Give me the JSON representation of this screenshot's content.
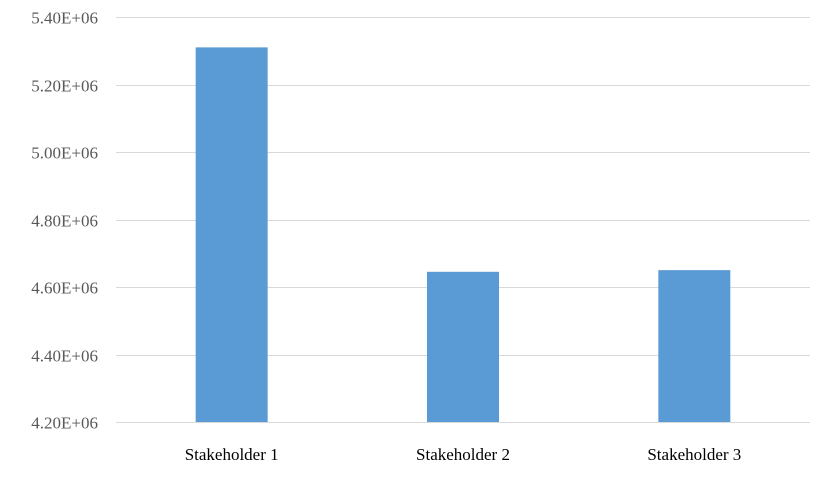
{
  "chart_data": {
    "type": "bar",
    "categories": [
      "Stakeholder 1",
      "Stakeholder 2",
      "Stakeholder 3"
    ],
    "values": [
      5310000,
      4645000,
      4650000
    ],
    "ylim": [
      4200000,
      5400000
    ],
    "yticks": [
      4200000,
      4400000,
      4600000,
      4800000,
      5000000,
      5200000,
      5400000
    ],
    "ytick_labels": [
      "4.20E+06",
      "4.40E+06",
      "4.60E+06",
      "4.80E+06",
      "5.00E+06",
      "5.20E+06",
      "5.40E+06"
    ],
    "title": "",
    "xlabel": "",
    "ylabel": "",
    "grid": true,
    "legend": "none",
    "colors": {
      "bar": "#5b9bd5",
      "grid": "#d9d9d9",
      "tick_text": "#595959",
      "category_text": "#000000"
    }
  }
}
